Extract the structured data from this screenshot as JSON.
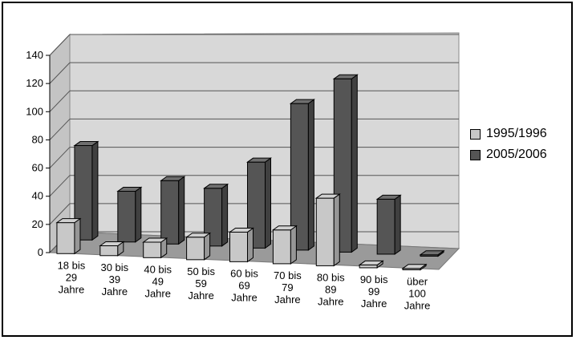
{
  "chart_data": {
    "type": "bar",
    "title": "",
    "xlabel": "",
    "ylabel": "",
    "ylim": [
      0,
      140
    ],
    "yticks": [
      0,
      20,
      40,
      60,
      80,
      100,
      120,
      140
    ],
    "grid": true,
    "legend_position": "right",
    "categories": [
      [
        "18 bis",
        "29",
        "Jahre"
      ],
      [
        "30 bis",
        "39",
        "Jahre"
      ],
      [
        "40 bis",
        "49",
        "Jahre"
      ],
      [
        "50 bis",
        "59",
        "Jahre"
      ],
      [
        "60 bis",
        "69",
        "Jahre"
      ],
      [
        "70 bis",
        "79",
        "Jahre"
      ],
      [
        "80 bis",
        "89",
        "Jahre"
      ],
      [
        "90 bis",
        "99",
        "Jahre"
      ],
      [
        "über",
        "100",
        "Jahre"
      ]
    ],
    "series": [
      {
        "name": "1995/1996",
        "color": "#c8c8c8",
        "values": [
          22,
          7,
          11,
          16,
          21,
          24,
          48,
          2,
          1
        ]
      },
      {
        "name": "2005/2006",
        "color": "#555555",
        "values": [
          67,
          36,
          45,
          41,
          61,
          104,
          123,
          39,
          1
        ]
      }
    ]
  }
}
